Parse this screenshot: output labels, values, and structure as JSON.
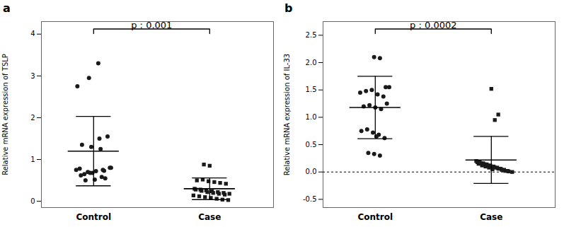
{
  "chart_data": [
    {
      "type": "scatter",
      "panel_label": "a",
      "title": "p : 0.001",
      "ylabel": "Relative mRNA expression of TSLP",
      "xlim": [
        0.55,
        2.55
      ],
      "xticks": [
        {
          "value": 1,
          "label": "Control"
        },
        {
          "value": 2,
          "label": "Case"
        }
      ],
      "ylim": [
        -0.15,
        4.3
      ],
      "yticks": [
        0,
        1,
        2,
        3,
        4
      ],
      "series": [
        {
          "name": "Control",
          "marker": "circle",
          "color": "#1a1a1a",
          "x": [
            0.88,
            0.92,
            0.97,
            1.02,
            1.08,
            1.14,
            0.85,
            0.95,
            1.05,
            1.12,
            0.9,
            0.98,
            1.06,
            0.86,
            0.96,
            1.04,
            1.1,
            0.93,
            1.01,
            1.07,
            0.89,
            0.99,
            1.09,
            1.15
          ],
          "values": [
            0.78,
            0.65,
            0.68,
            0.72,
            0.75,
            0.8,
            0.75,
            0.7,
            1.5,
            1.55,
            1.35,
            1.3,
            1.25,
            2.75,
            2.95,
            3.3,
            0.55,
            0.5,
            0.52,
            0.58,
            0.62,
            0.68,
            0.73,
            0.8
          ],
          "mean": 1.2,
          "sd_upper": 2.03,
          "sd_lower": 0.37
        },
        {
          "name": "Case",
          "marker": "square",
          "color": "#1a1a1a",
          "x": [
            1.88,
            1.93,
            1.98,
            2.03,
            2.08,
            2.13,
            1.86,
            1.91,
            1.96,
            2.01,
            2.06,
            2.11,
            2.16,
            1.89,
            1.94,
            1.99,
            2.04,
            2.09,
            2.14,
            1.87,
            1.92,
            1.97,
            2.02,
            2.07,
            2.12,
            2.17,
            2.0,
            1.95
          ],
          "values": [
            0.28,
            0.25,
            0.22,
            0.2,
            0.18,
            0.16,
            0.14,
            0.12,
            0.1,
            0.08,
            0.06,
            0.04,
            0.03,
            0.5,
            0.52,
            0.48,
            0.46,
            0.44,
            0.42,
            0.3,
            0.28,
            0.26,
            0.24,
            0.22,
            0.2,
            0.18,
            0.85,
            0.88
          ],
          "mean": 0.3,
          "sd_upper": 0.56,
          "sd_lower": 0.04
        }
      ]
    },
    {
      "type": "scatter",
      "panel_label": "b",
      "title": "p : 0.0002",
      "ylabel": "Relative mRNA expression of IL-33",
      "xlim": [
        0.55,
        2.55
      ],
      "xticks": [
        {
          "value": 1,
          "label": "Control"
        },
        {
          "value": 2,
          "label": "Case"
        }
      ],
      "ylim": [
        -0.65,
        2.75
      ],
      "yticks": [
        -0.5,
        {
          "value": 0.0,
          "label": "0.0"
        },
        0.5,
        {
          "value": 1.0,
          "label": "1.0"
        },
        1.5,
        {
          "value": 2.0,
          "label": "2.0"
        },
        2.5
      ],
      "reference_line": 0.0,
      "line_style": "dashed",
      "series": [
        {
          "name": "Control",
          "marker": "circle",
          "color": "#1a1a1a",
          "x": [
            0.87,
            0.92,
            0.97,
            1.02,
            1.07,
            1.12,
            0.9,
            0.95,
            1.0,
            1.05,
            1.1,
            0.88,
            0.93,
            0.98,
            1.03,
            1.08,
            0.94,
            0.99,
            1.04,
            0.99,
            1.04,
            1.09,
            1.01
          ],
          "values": [
            1.45,
            1.48,
            1.5,
            1.42,
            1.38,
            1.55,
            1.2,
            1.22,
            1.18,
            1.15,
            1.25,
            0.75,
            0.78,
            0.72,
            0.68,
            0.62,
            0.35,
            0.33,
            0.3,
            2.1,
            2.08,
            1.55,
            0.65
          ],
          "mean": 1.18,
          "sd_upper": 1.75,
          "sd_lower": 0.61
        },
        {
          "name": "Case",
          "marker": "square",
          "color": "#1a1a1a",
          "x": [
            1.88,
            1.91,
            1.94,
            1.97,
            2.0,
            2.03,
            2.06,
            2.09,
            2.12,
            2.15,
            2.18,
            1.87,
            1.9,
            1.93,
            1.96,
            1.99,
            2.02,
            2.05,
            2.08,
            2.11,
            2.14,
            1.89,
            1.92,
            1.95,
            1.98,
            2.01,
            2.0,
            2.03,
            2.06
          ],
          "values": [
            0.18,
            0.16,
            0.14,
            0.12,
            0.1,
            0.08,
            0.06,
            0.04,
            0.02,
            0.01,
            0.0,
            0.2,
            0.18,
            0.16,
            0.14,
            0.12,
            0.1,
            0.08,
            0.06,
            0.04,
            0.02,
            0.15,
            0.12,
            0.1,
            0.08,
            0.05,
            1.52,
            0.95,
            1.05
          ],
          "mean": 0.22,
          "sd_upper": 0.65,
          "sd_lower": -0.21
        }
      ]
    }
  ]
}
